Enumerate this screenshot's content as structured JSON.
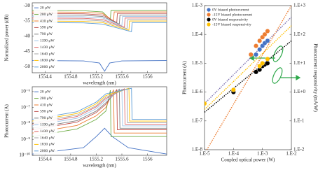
{
  "chart_data": [
    {
      "type": "line",
      "y_label": "Normalized power (dB)",
      "x_label": "wavelength (nm)",
      "xlim": [
        1554.2,
        1556.3
      ],
      "xticks": [
        1554.4,
        1554.8,
        1555.2,
        1555.6,
        1556
      ],
      "ylim": [
        -52,
        -29
      ],
      "yticks": [
        -30,
        -35,
        -40,
        -45,
        -50
      ],
      "legend": "upper left",
      "series": [
        {
          "name": "20 μW",
          "color": "#4472c4",
          "x": [
            1554.2,
            1555.0,
            1555.25,
            1555.33,
            1555.41,
            1555.6,
            1556.3
          ],
          "values": [
            -48,
            -48.1,
            -48.8,
            -51.5,
            -48.8,
            -48.1,
            -48
          ]
        },
        {
          "name": "200 μW",
          "color": "#70ad47",
          "x": [
            1554.2,
            1555.0,
            1555.3,
            1555.42,
            1555.43,
            1556.3
          ],
          "values": [
            -31.5,
            -31.6,
            -32,
            -34.5,
            -31.5,
            -31.5
          ]
        },
        {
          "name": "410 μW",
          "color": "#ed7d31",
          "x": [
            1554.2,
            1555.0,
            1555.3,
            1555.47,
            1555.48,
            1556.3
          ],
          "values": [
            -32,
            -32.1,
            -32.5,
            -35,
            -32,
            -32
          ]
        },
        {
          "name": "590 μW",
          "color": "#c0504d",
          "x": [
            1554.2,
            1555.0,
            1555.3,
            1555.52,
            1555.53,
            1556.3
          ],
          "values": [
            -32.5,
            -32.6,
            -33,
            -35.5,
            -32.5,
            -32.5
          ]
        },
        {
          "name": "790 μW",
          "color": "#7f7f7f",
          "x": [
            1554.2,
            1555.0,
            1555.3,
            1555.56,
            1555.57,
            1556.3
          ],
          "values": [
            -33,
            -33.1,
            -33.5,
            -36,
            -33,
            -33
          ]
        },
        {
          "name": "1190 μW",
          "color": "#9dc3e6",
          "x": [
            1554.2,
            1555.0,
            1555.3,
            1555.6,
            1555.61,
            1556.3
          ],
          "values": [
            -33.5,
            -33.6,
            -34,
            -36.5,
            -33.5,
            -33.5
          ]
        },
        {
          "name": "1430 μW",
          "color": "#e06666",
          "x": [
            1554.2,
            1555.0,
            1555.3,
            1555.64,
            1555.65,
            1556.3
          ],
          "values": [
            -34,
            -34.1,
            -34.5,
            -37,
            -34,
            -34
          ]
        },
        {
          "name": "1640 μW",
          "color": "#a5a5a5",
          "x": [
            1554.2,
            1555.0,
            1555.3,
            1555.68,
            1555.69,
            1556.3
          ],
          "values": [
            -34.5,
            -34.6,
            -35,
            -37.5,
            -34.5,
            -34.5
          ]
        },
        {
          "name": "1830 μW",
          "color": "#ffc000",
          "x": [
            1554.2,
            1555.0,
            1555.3,
            1555.71,
            1555.72,
            1556.3
          ],
          "values": [
            -35,
            -35.1,
            -35.5,
            -38,
            -35,
            -35
          ]
        },
        {
          "name": "2000 μW",
          "color": "#5b9bd5",
          "x": [
            1554.2,
            1555.0,
            1555.3,
            1555.75,
            1555.76,
            1556.3
          ],
          "values": [
            -35.5,
            -35.6,
            -36,
            -38.5,
            -35.5,
            -35.5
          ]
        }
      ]
    },
    {
      "type": "line",
      "y_label": "Photocurrent (A)",
      "x_label": "wavelength (nm)",
      "ylog": true,
      "xlim": [
        1554.2,
        1556.3
      ],
      "xticks": [
        1554.4,
        1554.8,
        1555.2,
        1555.6,
        1556
      ],
      "ylim": [
        1e-10,
        2e-06
      ],
      "yticks": [
        {
          "value": 1e-06,
          "label": "10⁻⁶"
        },
        {
          "value": 1e-07,
          "label": "10⁻⁷"
        },
        {
          "value": 1e-08,
          "label": "10⁻⁸"
        },
        {
          "value": 1e-09,
          "label": "10⁻⁹"
        },
        {
          "value": 1e-10,
          "label": "10⁻¹⁰"
        }
      ],
      "legend": "upper left",
      "series": [
        {
          "name": "20 μW",
          "color": "#4472c4",
          "x": [
            1554.2,
            1555.0,
            1555.2,
            1555.33,
            1555.45,
            1555.7,
            1556.3
          ],
          "values": [
            1.2e-10,
            3e-10,
            1.5e-09,
            5e-09,
            1.5e-09,
            3e-10,
            1.2e-10
          ]
        },
        {
          "name": "200 μW",
          "color": "#70ad47",
          "x": [
            1554.2,
            1554.9,
            1555.2,
            1555.35,
            1555.42,
            1555.43,
            1556.3
          ],
          "values": [
            1.5e-09,
            4.5e-09,
            1.8e-08,
            6e-08,
            1.2e-06,
            1.5e-09,
            1.5e-09
          ]
        },
        {
          "name": "410 μW",
          "color": "#ed7d31",
          "x": [
            1554.2,
            1554.9,
            1555.2,
            1555.35,
            1555.47,
            1555.48,
            1556.3
          ],
          "values": [
            2.5e-09,
            7.5e-09,
            3e-08,
            1e-07,
            1.3e-06,
            2.5e-09,
            2.5e-09
          ]
        },
        {
          "name": "590 μW",
          "color": "#c0504d",
          "x": [
            1554.2,
            1554.9,
            1555.2,
            1555.35,
            1555.52,
            1555.53,
            1556.3
          ],
          "values": [
            4e-09,
            1.2e-08,
            4.8e-08,
            1.6e-07,
            1.3e-06,
            4e-09,
            4e-09
          ]
        },
        {
          "name": "790 μW",
          "color": "#7f7f7f",
          "x": [
            1554.2,
            1554.9,
            1555.2,
            1555.35,
            1555.56,
            1555.57,
            1556.3
          ],
          "values": [
            5e-09,
            1.5e-08,
            6e-08,
            2e-07,
            1.4e-06,
            5e-09,
            5e-09
          ]
        },
        {
          "name": "1190 μW",
          "color": "#9dc3e6",
          "x": [
            1554.2,
            1554.9,
            1555.2,
            1555.35,
            1555.6,
            1555.61,
            1556.3
          ],
          "values": [
            7e-09,
            2.1e-08,
            8.4e-08,
            2.8e-07,
            1.4e-06,
            7e-09,
            7e-09
          ]
        },
        {
          "name": "1430 μW",
          "color": "#e06666",
          "x": [
            1554.2,
            1554.9,
            1555.2,
            1555.35,
            1555.64,
            1555.65,
            1556.3
          ],
          "values": [
            9e-09,
            2.7e-08,
            1.1e-07,
            3.6e-07,
            1.5e-06,
            9e-09,
            9e-09
          ]
        },
        {
          "name": "1640 μW",
          "color": "#a5a5a5",
          "x": [
            1554.2,
            1554.9,
            1555.2,
            1555.35,
            1555.68,
            1555.69,
            1556.3
          ],
          "values": [
            1.1e-08,
            3.3e-08,
            1.3e-07,
            4.4e-07,
            1.5e-06,
            1.1e-08,
            1.1e-08
          ]
        },
        {
          "name": "1830 μW",
          "color": "#ffc000",
          "x": [
            1554.2,
            1554.9,
            1555.2,
            1555.35,
            1555.71,
            1555.72,
            1556.3
          ],
          "values": [
            1.4e-08,
            4.2e-08,
            1.7e-07,
            5.6e-07,
            1.6e-06,
            1.4e-08,
            1.4e-08
          ]
        },
        {
          "name": "2000 μW",
          "color": "#5b9bd5",
          "x": [
            1554.2,
            1554.9,
            1555.2,
            1555.35,
            1555.75,
            1555.76,
            1556.3
          ],
          "values": [
            1.8e-08,
            5.4e-08,
            2.2e-07,
            7.2e-07,
            1.6e-06,
            1.8e-08,
            1.8e-08
          ]
        }
      ]
    },
    {
      "type": "scatter",
      "x_label": "Coupled optical power (W)",
      "y_label": "Photocurrent (A)",
      "y2_label": "Photocurrent responsivity (mA/W)",
      "xlog": true,
      "ylog": true,
      "y2log": true,
      "xlim": [
        1e-05,
        0.01
      ],
      "xticks": [
        {
          "value": 1e-05,
          "label": "1.E-5"
        },
        {
          "value": 0.0001,
          "label": "1.E-4"
        },
        {
          "value": 0.001,
          "label": "1.E-3"
        },
        {
          "value": 0.01,
          "label": "1.E-2"
        }
      ],
      "ylim": [
        1e-08,
        0.001
      ],
      "yticks": [
        {
          "value": 0.001,
          "label": "1.E-3"
        },
        {
          "value": 0.0001,
          "label": "1.E-4"
        },
        {
          "value": 1e-05,
          "label": "1.E-5"
        },
        {
          "value": 1e-06,
          "label": "1.E-6"
        },
        {
          "value": 1e-07,
          "label": "1.E-7"
        },
        {
          "value": 1e-08,
          "label": "1.E-8"
        }
      ],
      "y2lim": [
        0.01,
        1000.0
      ],
      "y2ticks": [
        {
          "value": 1000.0,
          "label": "1.E+3"
        },
        {
          "value": 100.0,
          "label": "1.E+2"
        },
        {
          "value": 10.0,
          "label": "1.E+1"
        },
        {
          "value": 1,
          "label": "1.E+0"
        },
        {
          "value": 0.1,
          "label": "1.E-1"
        },
        {
          "value": 0.01,
          "label": "1.E-2"
        }
      ],
      "legend": "upper left",
      "series": [
        {
          "color": "#7c6fb0",
          "style": "dotted",
          "x": [
            1e-05,
            0.01
          ],
          "values": [
            4e-07,
            0.0004
          ]
        },
        {
          "color": "#ed7d31",
          "style": "dotted",
          "x": [
            1.2e-05,
            0.01
          ],
          "values": [
            1e-08,
            0.001
          ]
        },
        {
          "color": "#000000",
          "style": "dotted",
          "axis": "y2",
          "x": [
            1e-05,
            0.01
          ],
          "values": [
            0.2,
            60
          ]
        },
        {
          "color": "#ffc000",
          "style": "dotted",
          "axis": "y2",
          "x": [
            1e-05,
            0.01
          ],
          "values": [
            0.25,
            200
          ]
        },
        {
          "name": "0V biased photocurrent",
          "color": "#4472c4",
          "x": [
            0.0006,
            0.0008,
            0.001,
            0.0012,
            0.0015
          ],
          "values": [
            2e-05,
            3e-05,
            4e-05,
            5e-05,
            6e-05
          ]
        },
        {
          "name": "-15V biased photocurrent",
          "color": "#ed7d31",
          "x": [
            0.0004,
            0.0006,
            0.0008,
            0.001,
            0.0012,
            0.0015
          ],
          "values": [
            2e-05,
            4e-05,
            6e-05,
            8e-05,
            0.0001,
            0.00013
          ]
        },
        {
          "name": "0V biased responsivity",
          "color": "#000000",
          "axis": "y2",
          "x": [
            0.0001,
            0.0006,
            0.0008,
            0.001,
            0.0012,
            0.0015
          ],
          "values": [
            1,
            5,
            6,
            8,
            9,
            10
          ]
        },
        {
          "name": "-15V biased responsivity",
          "color": "#ffc000",
          "axis": "y2",
          "x": [
            1e-05,
            0.0001,
            0.0008,
            0.001,
            0.0015
          ],
          "values": [
            0.4,
            1.2,
            8,
            10,
            14
          ]
        }
      ]
    }
  ]
}
